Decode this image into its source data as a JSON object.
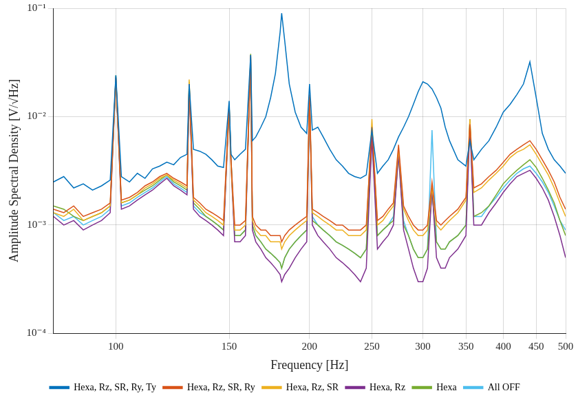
{
  "chart_data": {
    "type": "line",
    "x_label": "Frequency [Hz]",
    "y_label": "Amplitude Spectral Density [V/√Hz]",
    "log": true,
    "grid": true,
    "legend": "bottom",
    "xlim": [
      80,
      500
    ],
    "xticks": [
      100,
      150,
      200,
      250,
      300,
      350,
      400,
      450,
      500
    ],
    "ylim": [
      0.0001,
      0.1
    ],
    "yticks": [
      {
        "value": 0.0001,
        "label": "10⁻⁴"
      },
      {
        "value": 0.001,
        "label": "10⁻³"
      },
      {
        "value": 0.01,
        "label": "10⁻²"
      },
      {
        "value": 0.1,
        "label": "10⁻¹"
      }
    ],
    "x": [
      80,
      83,
      86,
      89,
      92,
      95,
      98,
      100,
      102,
      105,
      108,
      111,
      114,
      117,
      120,
      123,
      126,
      129,
      130,
      132,
      135,
      138,
      141,
      144,
      147,
      150,
      151,
      153,
      156,
      159,
      162,
      163,
      165,
      168,
      171,
      174,
      177,
      180,
      181,
      183,
      186,
      190,
      194,
      198,
      200,
      202,
      206,
      210,
      215,
      220,
      225,
      230,
      235,
      240,
      245,
      250,
      255,
      260,
      265,
      270,
      275,
      280,
      285,
      290,
      295,
      300,
      305,
      310,
      315,
      320,
      325,
      330,
      340,
      350,
      355,
      360,
      370,
      380,
      390,
      400,
      410,
      420,
      430,
      440,
      450,
      460,
      470,
      480,
      490,
      500
    ],
    "series": [
      {
        "name": "Hexa, Rz, SR, Ry, Ty",
        "color": "#0072bd",
        "values": [
          0.0025,
          0.0028,
          0.0022,
          0.0024,
          0.0021,
          0.0023,
          0.0026,
          0.024,
          0.0028,
          0.0025,
          0.003,
          0.0027,
          0.0033,
          0.0035,
          0.0038,
          0.0036,
          0.0042,
          0.0045,
          0.02,
          0.005,
          0.0048,
          0.0045,
          0.004,
          0.0035,
          0.0034,
          0.014,
          0.0045,
          0.004,
          0.0045,
          0.005,
          0.037,
          0.006,
          0.0065,
          0.008,
          0.01,
          0.015,
          0.025,
          0.06,
          0.09,
          0.05,
          0.02,
          0.011,
          0.008,
          0.007,
          0.02,
          0.0075,
          0.008,
          0.0065,
          0.005,
          0.004,
          0.0035,
          0.003,
          0.0028,
          0.0027,
          0.0029,
          0.0075,
          0.003,
          0.0035,
          0.004,
          0.005,
          0.0065,
          0.008,
          0.01,
          0.013,
          0.017,
          0.021,
          0.02,
          0.018,
          0.015,
          0.012,
          0.008,
          0.006,
          0.004,
          0.0035,
          0.006,
          0.004,
          0.005,
          0.006,
          0.008,
          0.011,
          0.013,
          0.016,
          0.02,
          0.032,
          0.015,
          0.007,
          0.005,
          0.004,
          0.0035,
          0.003
        ]
      },
      {
        "name": "Hexa, Rz, SR, Ry",
        "color": "#d95319",
        "values": [
          0.0014,
          0.0013,
          0.0015,
          0.0012,
          0.0013,
          0.0014,
          0.0016,
          0.023,
          0.0017,
          0.0018,
          0.002,
          0.0023,
          0.0025,
          0.0028,
          0.003,
          0.0027,
          0.0025,
          0.0023,
          0.02,
          0.0018,
          0.0016,
          0.0014,
          0.0013,
          0.0012,
          0.0011,
          0.013,
          0.004,
          0.001,
          0.001,
          0.0011,
          0.037,
          0.0012,
          0.001,
          0.0009,
          0.0009,
          0.0008,
          0.0008,
          0.0008,
          0.0007,
          0.0008,
          0.0009,
          0.001,
          0.0011,
          0.0012,
          0.016,
          0.0014,
          0.0013,
          0.0012,
          0.0011,
          0.001,
          0.001,
          0.0009,
          0.0009,
          0.0009,
          0.001,
          0.008,
          0.0011,
          0.0012,
          0.0014,
          0.0016,
          0.0055,
          0.0015,
          0.0012,
          0.001,
          0.0009,
          0.0009,
          0.001,
          0.0025,
          0.0011,
          0.001,
          0.0011,
          0.0012,
          0.0014,
          0.0018,
          0.0085,
          0.0022,
          0.0024,
          0.0028,
          0.0032,
          0.0038,
          0.0045,
          0.005,
          0.0055,
          0.006,
          0.005,
          0.004,
          0.0032,
          0.0025,
          0.0018,
          0.0014
        ]
      },
      {
        "name": "Hexa, Rz, SR",
        "color": "#edb120",
        "values": [
          0.0013,
          0.0012,
          0.0014,
          0.0011,
          0.0012,
          0.0013,
          0.0015,
          0.022,
          0.0016,
          0.0017,
          0.0019,
          0.0022,
          0.0024,
          0.0027,
          0.0029,
          0.0026,
          0.0024,
          0.0022,
          0.022,
          0.0017,
          0.0015,
          0.0013,
          0.0012,
          0.0011,
          0.001,
          0.012,
          0.0035,
          0.0009,
          0.0009,
          0.001,
          0.036,
          0.0011,
          0.0009,
          0.0008,
          0.0008,
          0.0007,
          0.0007,
          0.0007,
          0.0006,
          0.0007,
          0.0008,
          0.0009,
          0.001,
          0.0011,
          0.014,
          0.0013,
          0.0012,
          0.0011,
          0.001,
          0.0009,
          0.0009,
          0.0008,
          0.0008,
          0.0008,
          0.0009,
          0.0095,
          0.001,
          0.0011,
          0.0013,
          0.0015,
          0.005,
          0.0014,
          0.0011,
          0.0009,
          0.0008,
          0.0008,
          0.0009,
          0.0022,
          0.001,
          0.0009,
          0.001,
          0.0011,
          0.0013,
          0.0017,
          0.0095,
          0.002,
          0.0022,
          0.0026,
          0.003,
          0.0035,
          0.0042,
          0.0047,
          0.005,
          0.0055,
          0.0045,
          0.0036,
          0.0029,
          0.0022,
          0.0016,
          0.0012
        ]
      },
      {
        "name": "Hexa, Rz",
        "color": "#7e2f8e",
        "values": [
          0.0012,
          0.001,
          0.0011,
          0.0009,
          0.001,
          0.0011,
          0.0013,
          0.023,
          0.0014,
          0.0015,
          0.0017,
          0.0019,
          0.0021,
          0.0024,
          0.0027,
          0.0023,
          0.0021,
          0.0019,
          0.019,
          0.0014,
          0.0012,
          0.0011,
          0.001,
          0.0009,
          0.0008,
          0.012,
          0.0035,
          0.0007,
          0.0007,
          0.0008,
          0.036,
          0.0009,
          0.0007,
          0.0006,
          0.0005,
          0.00045,
          0.0004,
          0.00035,
          0.0003,
          0.00035,
          0.0004,
          0.0005,
          0.0006,
          0.0007,
          0.014,
          0.001,
          0.0008,
          0.0007,
          0.0006,
          0.0005,
          0.00045,
          0.0004,
          0.00035,
          0.0003,
          0.0004,
          0.0065,
          0.0006,
          0.0007,
          0.0008,
          0.001,
          0.0045,
          0.0009,
          0.0006,
          0.0004,
          0.0003,
          0.0003,
          0.0004,
          0.0022,
          0.0005,
          0.0004,
          0.0004,
          0.0005,
          0.0006,
          0.0008,
          0.0085,
          0.001,
          0.001,
          0.0013,
          0.0016,
          0.002,
          0.0024,
          0.0028,
          0.003,
          0.0032,
          0.0027,
          0.0022,
          0.0017,
          0.0012,
          0.0008,
          0.0005
        ]
      },
      {
        "name": "Hexa",
        "color": "#77ac30",
        "values": [
          0.0015,
          0.0014,
          0.0012,
          0.0011,
          0.0012,
          0.0013,
          0.0015,
          0.024,
          0.0016,
          0.0017,
          0.0019,
          0.0021,
          0.0023,
          0.0026,
          0.0029,
          0.0025,
          0.0023,
          0.0021,
          0.021,
          0.0016,
          0.0014,
          0.0012,
          0.0011,
          0.001,
          0.0009,
          0.013,
          0.004,
          0.0008,
          0.0008,
          0.0009,
          0.038,
          0.001,
          0.0008,
          0.0007,
          0.0006,
          0.00055,
          0.0005,
          0.00045,
          0.0004,
          0.0005,
          0.0006,
          0.0007,
          0.0008,
          0.0009,
          0.015,
          0.0011,
          0.001,
          0.0009,
          0.0008,
          0.0007,
          0.00065,
          0.0006,
          0.00055,
          0.0005,
          0.0006,
          0.007,
          0.0008,
          0.0009,
          0.001,
          0.0011,
          0.0045,
          0.001,
          0.0008,
          0.0006,
          0.0005,
          0.0005,
          0.0006,
          0.002,
          0.0007,
          0.0006,
          0.0006,
          0.0007,
          0.0008,
          0.001,
          0.0095,
          0.0012,
          0.0013,
          0.0015,
          0.0019,
          0.0024,
          0.0028,
          0.0032,
          0.0036,
          0.004,
          0.0034,
          0.0027,
          0.0021,
          0.0016,
          0.0011,
          0.0008
        ]
      },
      {
        "name": "All OFF",
        "color": "#4dbeee",
        "values": [
          0.0013,
          0.0011,
          0.0012,
          0.001,
          0.0011,
          0.0012,
          0.0014,
          0.024,
          0.0015,
          0.0016,
          0.0018,
          0.002,
          0.0022,
          0.0025,
          0.0028,
          0.0024,
          0.0022,
          0.002,
          0.02,
          0.0015,
          0.0013,
          0.0012,
          0.0011,
          0.001,
          0.0009,
          0.013,
          0.004,
          0.0008,
          0.0008,
          0.0009,
          0.037,
          0.001,
          0.0008,
          0.0007,
          0.0006,
          0.00055,
          0.0005,
          0.00045,
          0.0004,
          0.0005,
          0.0006,
          0.0007,
          0.0008,
          0.0009,
          0.015,
          0.0012,
          0.001,
          0.0009,
          0.0008,
          0.0007,
          0.00065,
          0.0006,
          0.00055,
          0.0005,
          0.0006,
          0.007,
          0.0008,
          0.0009,
          0.001,
          0.0012,
          0.005,
          0.0011,
          0.0008,
          0.0006,
          0.0005,
          0.0005,
          0.0006,
          0.0075,
          0.0007,
          0.0006,
          0.0006,
          0.0007,
          0.0008,
          0.001,
          0.009,
          0.0012,
          0.0012,
          0.0015,
          0.0018,
          0.0022,
          0.0026,
          0.003,
          0.0033,
          0.0035,
          0.003,
          0.0025,
          0.002,
          0.0015,
          0.0011,
          0.0009
        ]
      }
    ]
  }
}
